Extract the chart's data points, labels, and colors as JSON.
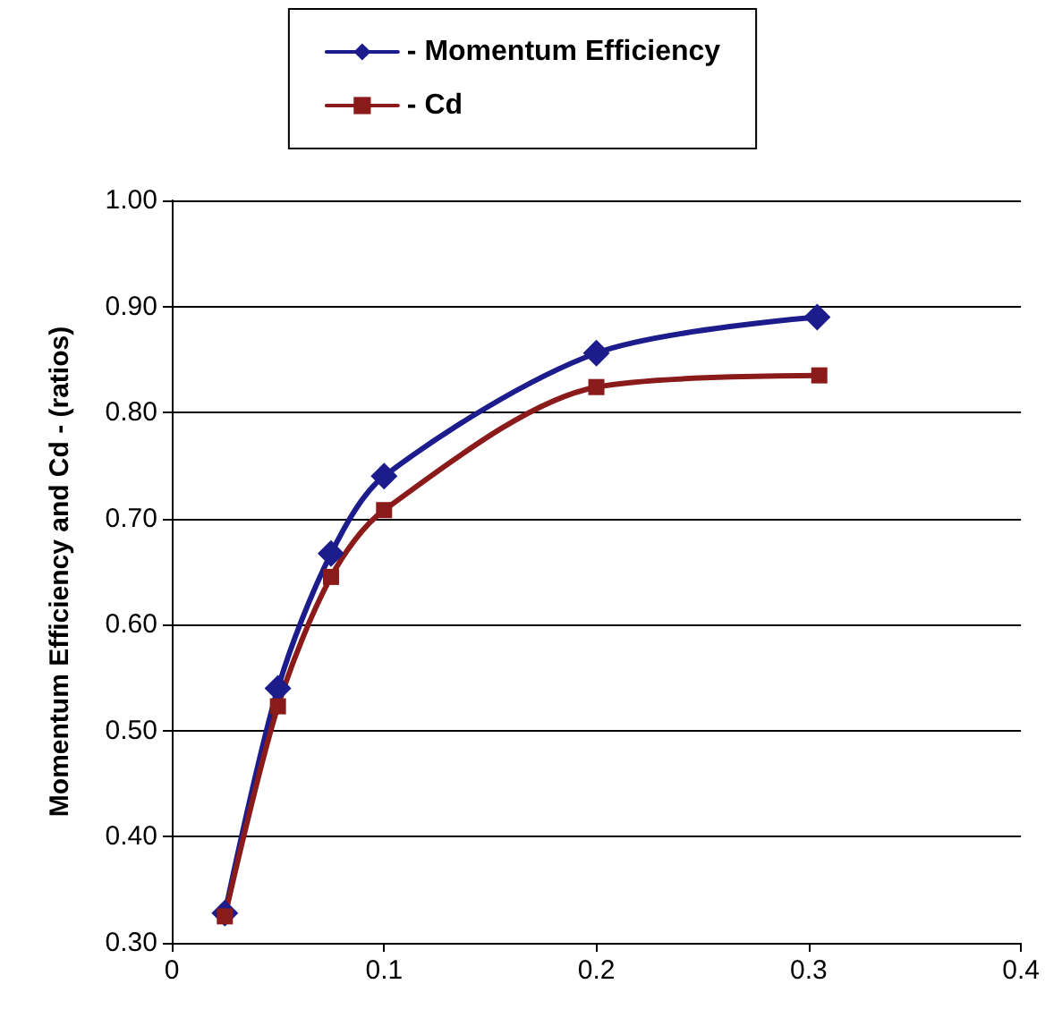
{
  "chart_data": {
    "type": "line",
    "ylabel": "Momentum Efficiency and Cd - (ratios)",
    "legend": "top",
    "grid": "y",
    "xlim": [
      0,
      0.4
    ],
    "xticks": [
      0,
      0.1,
      0.2,
      0.3,
      0.4
    ],
    "ylim": [
      0.3,
      1.0
    ],
    "yticks": [
      {
        "value": 0.3,
        "label": "0.30"
      },
      {
        "value": 0.4,
        "label": "0.40"
      },
      {
        "value": 0.5,
        "label": "0.50"
      },
      {
        "value": 0.6,
        "label": "0.60"
      },
      {
        "value": 0.7,
        "label": "0.70"
      },
      {
        "value": 0.8,
        "label": "0.80"
      },
      {
        "value": 0.9,
        "label": "0.90"
      },
      {
        "value": 1.0,
        "label": "1.00"
      }
    ],
    "line_style": "solid",
    "series": [
      {
        "name": "- Momentum Efficiency",
        "color": "#1c1c8c",
        "marker": "diamond",
        "x": [
          0.025,
          0.05,
          0.075,
          0.1,
          0.2,
          0.304
        ],
        "values": [
          0.328,
          0.54,
          0.667,
          0.74,
          0.856,
          0.89
        ]
      },
      {
        "name": "- Cd",
        "color": "#8b1a1a",
        "marker": "square",
        "x": [
          0.025,
          0.05,
          0.075,
          0.1,
          0.2,
          0.305
        ],
        "values": [
          0.325,
          0.523,
          0.645,
          0.708,
          0.824,
          0.835
        ]
      }
    ]
  }
}
